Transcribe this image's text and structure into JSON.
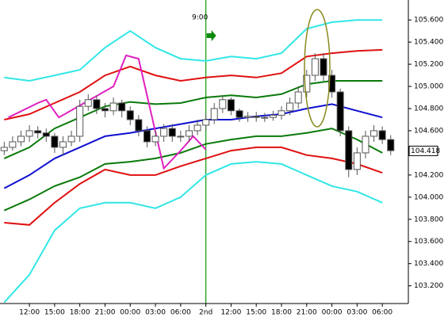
{
  "chart_data": {
    "type": "candlestick",
    "annotation": "9:00",
    "xlim": [
      -0.5,
      48.1
    ],
    "ylim": [
      103.04,
      105.78
    ],
    "xticks": [
      {
        "value": 3,
        "label": "12:00"
      },
      {
        "value": 6,
        "label": "15:00"
      },
      {
        "value": 9,
        "label": "18:00"
      },
      {
        "value": 12,
        "label": "21:00"
      },
      {
        "value": 15,
        "label": "00:00"
      },
      {
        "value": 18,
        "label": "03:00"
      },
      {
        "value": 21,
        "label": "06:00"
      },
      {
        "value": 24,
        "label": "2nd"
      },
      {
        "value": 27,
        "label": "12:00"
      },
      {
        "value": 30,
        "label": "15:00"
      },
      {
        "value": 33,
        "label": "18:00"
      },
      {
        "value": 36,
        "label": "21:00"
      },
      {
        "value": 39,
        "label": "00:00"
      },
      {
        "value": 42,
        "label": "03:00"
      },
      {
        "value": 45,
        "label": "06:00"
      }
    ],
    "yticks": [
      {
        "value": 105.6,
        "label": "105.600"
      },
      {
        "value": 105.4,
        "label": "105.400"
      },
      {
        "value": 105.2,
        "label": "105.200"
      },
      {
        "value": 105.0,
        "label": "105.000"
      },
      {
        "value": 104.8,
        "label": "104.800"
      },
      {
        "value": 104.6,
        "label": "104.600"
      },
      {
        "value": 104.2,
        "label": "104.200"
      },
      {
        "value": 104.0,
        "label": "104.000"
      },
      {
        "value": 103.8,
        "label": "103.800"
      },
      {
        "value": 103.6,
        "label": "103.600"
      },
      {
        "value": 103.4,
        "label": "103.400"
      },
      {
        "value": 103.2,
        "label": "103.200"
      }
    ],
    "last_price": {
      "value": 104.418,
      "label": "104.418"
    },
    "marker_x": 24,
    "candles": {
      "x": [
        0,
        1,
        2,
        3,
        4,
        5,
        6,
        7,
        8,
        9,
        10,
        11,
        12,
        13,
        14,
        15,
        16,
        17,
        18,
        19,
        20,
        21,
        22,
        23,
        24,
        25,
        26,
        27,
        28,
        29,
        30,
        31,
        32,
        33,
        34,
        35,
        36,
        37,
        38,
        39,
        40,
        41,
        42,
        43,
        44,
        45,
        46
      ],
      "open": [
        104.42,
        104.45,
        104.5,
        104.55,
        104.6,
        104.58,
        104.55,
        104.45,
        104.5,
        104.55,
        104.82,
        104.88,
        104.8,
        104.78,
        104.85,
        104.78,
        104.7,
        104.6,
        104.5,
        104.55,
        104.62,
        104.55,
        104.55,
        104.6,
        104.65,
        104.7,
        104.8,
        104.88,
        104.78,
        104.72,
        104.73,
        104.72,
        104.72,
        104.74,
        104.78,
        104.85,
        104.95,
        105.1,
        105.25,
        105.1,
        104.95,
        104.6,
        104.25,
        104.4,
        104.55,
        104.6,
        104.52
      ],
      "high": [
        104.5,
        104.55,
        104.6,
        104.65,
        104.64,
        104.62,
        104.58,
        104.55,
        104.6,
        104.88,
        104.93,
        104.92,
        104.85,
        104.9,
        104.88,
        104.82,
        104.74,
        104.64,
        104.6,
        104.66,
        104.66,
        104.6,
        104.65,
        104.7,
        104.75,
        104.85,
        104.92,
        104.9,
        104.8,
        104.77,
        104.77,
        104.76,
        104.78,
        104.82,
        104.9,
        105.0,
        105.15,
        105.3,
        105.3,
        105.15,
        104.98,
        104.64,
        104.45,
        104.6,
        104.65,
        104.64,
        104.56
      ],
      "low": [
        104.38,
        104.42,
        104.46,
        104.5,
        104.53,
        104.5,
        104.4,
        104.38,
        104.46,
        104.5,
        104.78,
        104.75,
        104.72,
        104.74,
        104.72,
        104.65,
        104.55,
        104.45,
        104.46,
        104.5,
        104.5,
        104.5,
        104.5,
        104.56,
        104.6,
        104.66,
        104.76,
        104.74,
        104.68,
        104.68,
        104.68,
        104.68,
        104.69,
        104.7,
        104.74,
        104.8,
        104.9,
        105.05,
        105.05,
        104.9,
        104.55,
        104.18,
        104.2,
        104.35,
        104.5,
        104.48,
        104.38
      ],
      "close": [
        104.45,
        104.5,
        104.55,
        104.6,
        104.58,
        104.55,
        104.45,
        104.5,
        104.55,
        104.82,
        104.88,
        104.8,
        104.78,
        104.85,
        104.78,
        104.7,
        104.6,
        104.5,
        104.55,
        104.62,
        104.55,
        104.55,
        104.6,
        104.65,
        104.7,
        104.8,
        104.88,
        104.78,
        104.72,
        104.73,
        104.72,
        104.72,
        104.74,
        104.78,
        104.85,
        104.95,
        105.1,
        105.25,
        105.1,
        104.95,
        104.6,
        104.25,
        104.4,
        104.55,
        104.6,
        104.52,
        104.42
      ]
    },
    "series": [
      {
        "color": "#33e6e6",
        "x": [
          0,
          3,
          6,
          9,
          12,
          15,
          18,
          21,
          24,
          27,
          30,
          33,
          36,
          39,
          42,
          45
        ],
        "values": [
          105.08,
          105.05,
          105.1,
          105.15,
          105.35,
          105.5,
          105.35,
          105.25,
          105.23,
          105.27,
          105.25,
          105.3,
          105.52,
          105.58,
          105.6,
          105.6
        ]
      },
      {
        "color": "#e01010",
        "x": [
          0,
          3,
          6,
          9,
          12,
          15,
          18,
          21,
          24,
          27,
          30,
          33,
          36,
          39,
          42,
          45
        ],
        "values": [
          104.7,
          104.75,
          104.85,
          104.95,
          105.1,
          105.18,
          105.1,
          105.05,
          105.08,
          105.1,
          105.08,
          105.12,
          105.27,
          105.3,
          105.32,
          105.33
        ]
      },
      {
        "color": "#0a7a0a",
        "x": [
          0,
          3,
          6,
          9,
          12,
          15,
          18,
          21,
          24,
          27,
          30,
          33,
          36,
          39,
          42,
          45
        ],
        "values": [
          104.35,
          104.45,
          104.62,
          104.72,
          104.82,
          104.86,
          104.84,
          104.85,
          104.9,
          104.92,
          104.9,
          104.93,
          105.02,
          105.05,
          105.05,
          105.05
        ]
      },
      {
        "color": "#1010d0",
        "x": [
          0,
          3,
          6,
          9,
          12,
          15,
          18,
          21,
          24,
          27,
          30,
          33,
          36,
          39,
          42,
          45
        ],
        "values": [
          104.08,
          104.2,
          104.35,
          104.45,
          104.55,
          104.58,
          104.62,
          104.66,
          104.7,
          104.7,
          104.73,
          104.75,
          104.8,
          104.84,
          104.78,
          104.72
        ]
      },
      {
        "color": "#0a7a0a",
        "x": [
          0,
          3,
          6,
          9,
          12,
          15,
          18,
          21,
          24,
          27,
          30,
          33,
          36,
          39,
          42,
          45
        ],
        "values": [
          103.88,
          103.98,
          104.1,
          104.18,
          104.3,
          104.32,
          104.35,
          104.4,
          104.48,
          104.52,
          104.55,
          104.55,
          104.58,
          104.62,
          104.52,
          104.4
        ]
      },
      {
        "color": "#e01010",
        "x": [
          0,
          3,
          6,
          9,
          12,
          15,
          18,
          21,
          24,
          27,
          30,
          33,
          36,
          39,
          42,
          45
        ],
        "values": [
          103.77,
          103.75,
          103.95,
          104.12,
          104.25,
          104.2,
          104.2,
          104.28,
          104.35,
          104.42,
          104.45,
          104.45,
          104.38,
          104.35,
          104.3,
          104.22
        ]
      },
      {
        "color": "#33e6e6",
        "x": [
          0,
          3,
          6,
          9,
          12,
          15,
          18,
          21,
          24,
          27,
          30,
          33,
          36,
          39,
          42,
          45
        ],
        "values": [
          103.05,
          103.3,
          103.7,
          103.9,
          103.95,
          103.95,
          103.9,
          104.0,
          104.2,
          104.3,
          104.32,
          104.3,
          104.2,
          104.1,
          104.05,
          103.95
        ]
      },
      {
        "color": "#e020c0",
        "x": [
          0.5,
          4,
          5,
          6.5,
          13,
          14.5,
          16,
          19,
          21,
          22.5,
          24
        ],
        "values": [
          104.72,
          104.85,
          104.88,
          104.72,
          105.0,
          105.28,
          105.25,
          104.26,
          104.42,
          104.55,
          104.43
        ]
      }
    ]
  }
}
